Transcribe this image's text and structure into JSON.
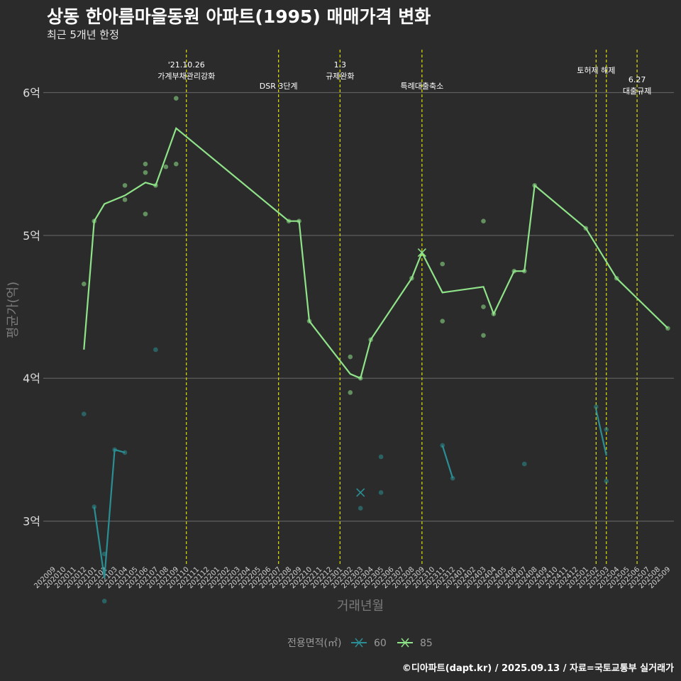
{
  "title": "상동 한아름마을동원 아파트(1995) 매매가격 변화",
  "subtitle": "최근 5개년 한정",
  "caption": "©디아파트(dapt.kr) / 2025.09.13 / 자료=국토교통부 실거래가",
  "chart_data": {
    "type": "line",
    "xlabel": "거래년월",
    "ylabel": "평균가(억)",
    "ylim": [
      2.7,
      6.35
    ],
    "yticks": [
      3,
      4,
      5,
      6
    ],
    "ytick_labels": [
      "3억",
      "4억",
      "5억",
      "6억"
    ],
    "categories": [
      "202009",
      "202010",
      "202011",
      "202012",
      "202101",
      "202102",
      "202103",
      "202104",
      "202105",
      "202106",
      "202107",
      "202108",
      "202109",
      "202110",
      "202111",
      "202112",
      "202201",
      "202202",
      "202203",
      "202204",
      "202205",
      "202206",
      "202207",
      "202208",
      "202209",
      "202210",
      "202211",
      "202212",
      "202301",
      "202302",
      "202303",
      "202304",
      "202305",
      "202306",
      "202307",
      "202308",
      "202309",
      "202310",
      "202311",
      "202312",
      "202401",
      "202402",
      "202403",
      "202404",
      "202405",
      "202406",
      "202407",
      "202408",
      "202409",
      "202410",
      "202411",
      "202412",
      "202501",
      "202502",
      "202503",
      "202504",
      "202505",
      "202506",
      "202507",
      "202508",
      "202509"
    ],
    "legend_title": "전용면적(㎡)",
    "series": [
      {
        "name": "60",
        "color": "#2a8f94",
        "line": [
          [
            [
              4,
              3.1
            ],
            [
              5,
              2.6
            ],
            [
              6,
              3.5
            ],
            [
              7,
              3.48
            ]
          ],
          [
            [
              38,
              3.53
            ],
            [
              39,
              3.3
            ]
          ],
          [
            [
              53,
              3.78
            ],
            [
              54,
              3.46
            ]
          ]
        ],
        "points": [
          [
            3,
            3.75
          ],
          [
            4,
            3.1
          ],
          [
            5,
            2.77
          ],
          [
            5,
            2.44
          ],
          [
            6,
            3.5
          ],
          [
            7,
            3.48
          ],
          [
            10,
            4.2
          ],
          [
            30,
            3.09
          ],
          [
            32,
            3.45
          ],
          [
            32,
            3.2
          ],
          [
            38,
            3.53
          ],
          [
            39,
            3.3
          ],
          [
            46,
            3.4
          ],
          [
            53,
            3.8
          ],
          [
            54,
            3.64
          ],
          [
            54,
            3.28
          ]
        ],
        "markers": [
          [
            30,
            3.2
          ]
        ]
      },
      {
        "name": "85",
        "color": "#8fe388",
        "line": [
          [
            [
              3,
              4.2
            ],
            [
              4,
              5.1
            ],
            [
              5,
              5.22
            ],
            [
              7,
              5.28
            ],
            [
              9,
              5.37
            ],
            [
              10,
              5.35
            ],
            [
              12,
              5.75
            ],
            [
              23,
              5.1
            ],
            [
              24,
              5.1
            ],
            [
              25,
              4.4
            ],
            [
              29,
              4.03
            ],
            [
              30,
              4.0
            ],
            [
              31,
              4.27
            ],
            [
              35,
              4.7
            ],
            [
              36,
              4.88
            ],
            [
              38,
              4.6
            ],
            [
              42,
              4.64
            ],
            [
              43,
              4.45
            ],
            [
              45,
              4.75
            ],
            [
              46,
              4.75
            ],
            [
              47,
              5.35
            ],
            [
              52,
              5.05
            ],
            [
              55,
              4.7
            ],
            [
              60,
              4.35
            ]
          ]
        ],
        "points": [
          [
            3,
            4.66
          ],
          [
            4,
            5.1
          ],
          [
            7,
            5.35
          ],
          [
            7,
            5.25
          ],
          [
            9,
            5.5
          ],
          [
            9,
            5.44
          ],
          [
            9,
            5.15
          ],
          [
            10,
            5.35
          ],
          [
            11,
            5.48
          ],
          [
            12,
            5.96
          ],
          [
            12,
            5.5
          ],
          [
            23,
            5.1
          ],
          [
            24,
            5.1
          ],
          [
            25,
            4.4
          ],
          [
            29,
            4.15
          ],
          [
            29,
            3.9
          ],
          [
            30,
            4.0
          ],
          [
            31,
            4.27
          ],
          [
            35,
            4.7
          ],
          [
            38,
            4.8
          ],
          [
            38,
            4.4
          ],
          [
            42,
            5.1
          ],
          [
            42,
            4.5
          ],
          [
            42,
            4.3
          ],
          [
            43,
            4.45
          ],
          [
            45,
            4.75
          ],
          [
            46,
            4.75
          ],
          [
            47,
            5.35
          ],
          [
            52,
            5.05
          ],
          [
            55,
            4.7
          ],
          [
            60,
            4.35
          ]
        ],
        "markers": [
          [
            36,
            4.88
          ]
        ]
      }
    ],
    "events": [
      {
        "x": 13,
        "lines": [
          "'21.10.26",
          "가계부채관리강화"
        ],
        "pos": "top"
      },
      {
        "x": 22,
        "lines": [
          "DSR 3단계"
        ],
        "pos": "low"
      },
      {
        "x": 28,
        "lines": [
          "1.3",
          "규제완화"
        ],
        "pos": "top"
      },
      {
        "x": 36,
        "lines": [
          "특례대출축소"
        ],
        "pos": "low"
      },
      {
        "x": 53,
        "lines": [
          "토허제 해제"
        ],
        "pos": "mid"
      },
      {
        "x": 54,
        "lines": [],
        "pos": "mid"
      },
      {
        "x": 57,
        "lines": [
          "6.27",
          "대출규제"
        ],
        "pos": "low2"
      }
    ],
    "event_color": "#e0e000"
  }
}
